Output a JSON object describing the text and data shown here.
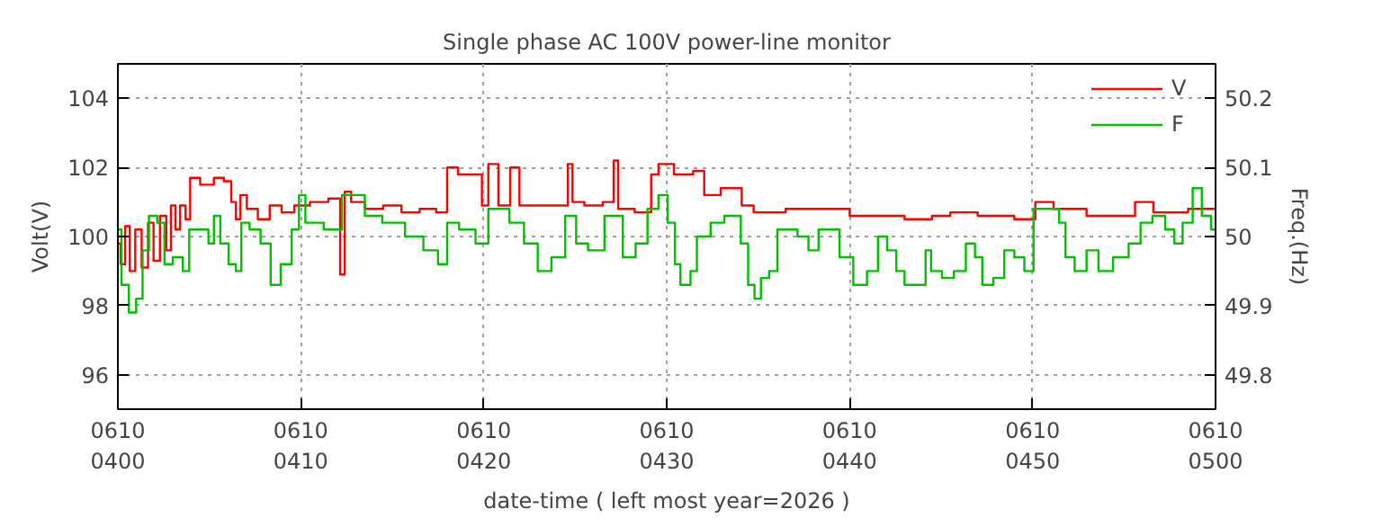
{
  "chart_data": {
    "type": "step",
    "title": "Single phase AC 100V power-line monitor",
    "xlabel": "date-time ( left most year=2026 )",
    "ylabel": "Volt(V)",
    "y2label": "Freq.(Hz)",
    "xlim": [
      "2026-06-10T04:00",
      "2026-06-10T05:00"
    ],
    "xticks": [
      {
        "value": "2026-06-10T04:00",
        "label": "0610\n0400"
      },
      {
        "value": "2026-06-10T04:10",
        "label": "0610\n0410"
      },
      {
        "value": "2026-06-10T04:20",
        "label": "0610\n0420"
      },
      {
        "value": "2026-06-10T04:30",
        "label": "0610\n0430"
      },
      {
        "value": "2026-06-10T04:40",
        "label": "0610\n0440"
      },
      {
        "value": "2026-06-10T04:50",
        "label": "0610\n0450"
      },
      {
        "value": "2026-06-10T05:00",
        "label": "0610\n0500"
      }
    ],
    "ylim": [
      95,
      105
    ],
    "yticks": [
      96,
      98,
      100,
      102,
      104
    ],
    "y2lim": [
      49.75,
      50.25
    ],
    "y2ticks": [
      49.8,
      49.9,
      50,
      50.1,
      50.2
    ],
    "grid": true,
    "legend": "top right",
    "series": [
      {
        "name": "V",
        "color": "#ff0000",
        "x": [
          "2026-06-10T04:00:00",
          "2026-06-10T04:00:18",
          "2026-06-10T04:00:30",
          "2026-06-10T04:00:48",
          "2026-06-10T04:01:06",
          "2026-06-10T04:01:30",
          "2026-06-10T04:01:48",
          "2026-06-10T04:02:06",
          "2026-06-10T04:02:30",
          "2026-06-10T04:02:48",
          "2026-06-10T04:03:00",
          "2026-06-10T04:03:18",
          "2026-06-10T04:03:30",
          "2026-06-10T04:03:54",
          "2026-06-10T04:04:00",
          "2026-06-10T04:05:00",
          "2026-06-10T04:05:30",
          "2026-06-10T04:06:06",
          "2026-06-10T04:06:18",
          "2026-06-10T04:06:36",
          "2026-06-10T04:06:48",
          "2026-06-10T04:07:18",
          "2026-06-10T04:08:00",
          "2026-06-10T04:08:36",
          "2026-06-10T04:09:18",
          "2026-06-10T04:10:00",
          "2026-06-10T04:11:00",
          "2026-06-10T04:12:00",
          "2026-06-10T04:12:18",
          "2026-06-10T04:12:30",
          "2026-06-10T04:13:00",
          "2026-06-10T04:14:00",
          "2026-06-10T04:15:00",
          "2026-06-10T04:16:00",
          "2026-06-10T04:17:00",
          "2026-06-10T04:17:48",
          "2026-06-10T04:18:12",
          "2026-06-10T04:19:00",
          "2026-06-10T04:19:48",
          "2026-06-10T04:20:00",
          "2026-06-10T04:20:30",
          "2026-06-10T04:21:06",
          "2026-06-10T04:21:48",
          "2026-06-10T04:22:06",
          "2026-06-10T04:24:30",
          "2026-06-10T04:24:42",
          "2026-06-10T04:25:00",
          "2026-06-10T04:26:00",
          "2026-06-10T04:27:00",
          "2026-06-10T04:27:12",
          "2026-06-10T04:27:30",
          "2026-06-10T04:29:00",
          "2026-06-10T04:29:18",
          "2026-06-10T04:29:48",
          "2026-06-10T04:31:00",
          "2026-06-10T04:31:54",
          "2026-06-10T04:32:12",
          "2026-06-10T04:33:42",
          "2026-06-10T04:34:30",
          "2026-06-10T04:35:00",
          "2026-06-10T04:38:00",
          "2026-06-10T04:42:00",
          "2026-06-10T04:44:00",
          "2026-06-10T04:45:00",
          "2026-06-10T04:46:00",
          "2026-06-10T04:48:00",
          "2026-06-10T04:50:00",
          "2026-06-10T04:50:18",
          "2026-06-10T04:52:00",
          "2026-06-10T04:53:54",
          "2026-06-10T04:55:00",
          "2026-06-10T04:56:12",
          "2026-06-10T04:57:00",
          "2026-06-10T05:00:00"
        ],
        "values": [
          99.8,
          99.2,
          100.3,
          99.0,
          100.2,
          99.1,
          100.4,
          99.3,
          100.6,
          99.6,
          100.9,
          100.2,
          100.9,
          100.5,
          101.7,
          101.5,
          101.7,
          101.6,
          101.0,
          100.5,
          101.2,
          100.8,
          100.5,
          100.9,
          100.7,
          100.9,
          101.0,
          101.1,
          98.9,
          101.3,
          101.0,
          100.8,
          100.9,
          100.7,
          100.8,
          100.7,
          102.0,
          101.8,
          101.8,
          100.9,
          102.1,
          100.9,
          102.0,
          100.9,
          100.9,
          102.1,
          101.0,
          100.9,
          101.0,
          102.2,
          100.8,
          100.7,
          101.8,
          102.1,
          101.8,
          101.9,
          101.2,
          101.4,
          100.9,
          100.7,
          100.8,
          100.6,
          100.5,
          100.6,
          100.7,
          100.6,
          100.5,
          101.0,
          100.8,
          100.6,
          100.6,
          101.0,
          100.7,
          100.8
        ]
      },
      {
        "name": "F",
        "color": "#00c000",
        "axis": "y2",
        "x": [
          "2026-06-10T04:00:00",
          "2026-06-10T04:00:24",
          "2026-06-10T04:00:48",
          "2026-06-10T04:01:12",
          "2026-06-10T04:01:30",
          "2026-06-10T04:01:54",
          "2026-06-10T04:02:24",
          "2026-06-10T04:02:42",
          "2026-06-10T04:03:18",
          "2026-06-10T04:03:48",
          "2026-06-10T04:04:00",
          "2026-06-10T04:04:48",
          "2026-06-10T04:05:06",
          "2026-06-10T04:05:24",
          "2026-06-10T04:05:48",
          "2026-06-10T04:06:18",
          "2026-06-10T04:06:36",
          "2026-06-10T04:06:54",
          "2026-06-10T04:07:30",
          "2026-06-10T04:08:06",
          "2026-06-10T04:08:36",
          "2026-06-10T04:09:12",
          "2026-06-10T04:09:48",
          "2026-06-10T04:10:00",
          "2026-06-10T04:10:30",
          "2026-06-10T04:12:00",
          "2026-06-10T04:12:30",
          "2026-06-10T04:13:18",
          "2026-06-10T04:13:42",
          "2026-06-10T04:15:12",
          "2026-06-10T04:16:12",
          "2026-06-10T04:17:12",
          "2026-06-10T04:17:48",
          "2026-06-10T04:18:12",
          "2026-06-10T04:19:06",
          "2026-06-10T04:20:00",
          "2026-06-10T04:20:30",
          "2026-06-10T04:21:06",
          "2026-06-10T04:21:42",
          "2026-06-10T04:22:42",
          "2026-06-10T04:23:12",
          "2026-06-10T04:24:12",
          "2026-06-10T04:24:42",
          "2026-06-10T04:25:24",
          "2026-06-10T04:26:00",
          "2026-06-10T04:27:12",
          "2026-06-10T04:28:00",
          "2026-06-10T04:28:36",
          "2026-06-10T04:29:18",
          "2026-06-10T04:29:48",
          "2026-06-10T04:30:18",
          "2026-06-10T04:30:36",
          "2026-06-10T04:30:54",
          "2026-06-10T04:31:12",
          "2026-06-10T04:31:24",
          "2026-06-10T04:31:54",
          "2026-06-10T04:32:54",
          "2026-06-10T04:33:24",
          "2026-06-10T04:33:54",
          "2026-06-10T04:34:12",
          "2026-06-10T04:34:42",
          "2026-06-10T04:34:54",
          "2026-06-10T04:35:24",
          "2026-06-10T04:35:48",
          "2026-06-10T04:36:18",
          "2026-06-10T04:36:48",
          "2026-06-10T04:37:30",
          "2026-06-10T04:38:00",
          "2026-06-10T04:38:36",
          "2026-06-10T04:39:06",
          "2026-06-10T04:39:48",
          "2026-06-10T04:40:36",
          "2026-06-10T04:41:18",
          "2026-06-10T04:41:48",
          "2026-06-10T04:42:18",
          "2026-06-10T04:42:48",
          "2026-06-10T04:43:12",
          "2026-06-10T04:44:06",
          "2026-06-10T04:44:12",
          "2026-06-10T04:44:42",
          "2026-06-10T04:45:24",
          "2026-06-10T04:46:00",
          "2026-06-10T04:46:42",
          "2026-06-10T04:47:00",
          "2026-06-10T04:47:30",
          "2026-06-10T04:48:12",
          "2026-06-10T04:48:42",
          "2026-06-10T04:49:18",
          "2026-06-10T04:49:48",
          "2026-06-10T04:50:18",
          "2026-06-10T04:51:18",
          "2026-06-10T04:51:36",
          "2026-06-10T04:52:00",
          "2026-06-10T04:52:36",
          "2026-06-10T04:53:18",
          "2026-06-10T04:53:54",
          "2026-06-10T04:54:54",
          "2026-06-10T04:55:36",
          "2026-06-10T04:56:12",
          "2026-06-10T04:56:54",
          "2026-06-10T04:57:36",
          "2026-06-10T04:57:54",
          "2026-06-10T04:58:30",
          "2026-06-10T04:59:00",
          "2026-06-10T04:59:30",
          "2026-06-10T05:00:00"
        ],
        "values": [
          50.01,
          49.93,
          49.89,
          49.91,
          49.98,
          50.03,
          50.02,
          49.96,
          49.97,
          49.95,
          50.01,
          50.01,
          49.99,
          50.03,
          49.99,
          49.96,
          49.95,
          50.02,
          50.01,
          49.99,
          49.93,
          49.96,
          50.01,
          50.06,
          50.02,
          50.01,
          50.06,
          50.06,
          50.03,
          50.02,
          50.0,
          49.98,
          49.96,
          50.02,
          50.01,
          49.99,
          50.04,
          50.04,
          50.02,
          49.99,
          49.95,
          49.97,
          50.03,
          49.99,
          49.98,
          50.03,
          49.97,
          49.99,
          50.04,
          50.06,
          50.02,
          49.96,
          49.93,
          49.93,
          49.95,
          50.0,
          50.02,
          50.03,
          50.03,
          49.99,
          49.93,
          49.91,
          49.94,
          49.95,
          50.01,
          50.01,
          50.0,
          49.98,
          50.01,
          50.01,
          49.97,
          49.93,
          49.95,
          50.0,
          49.98,
          49.95,
          49.93,
          49.93,
          49.98,
          49.95,
          49.94,
          49.95,
          49.99,
          49.97,
          49.93,
          49.94,
          49.98,
          49.97,
          49.95,
          50.04,
          50.04,
          50.02,
          49.97,
          49.95,
          49.98,
          49.95,
          49.97,
          49.99,
          50.02,
          50.03,
          50.01,
          49.99,
          50.02,
          50.07,
          50.03,
          50.01
        ]
      }
    ]
  }
}
